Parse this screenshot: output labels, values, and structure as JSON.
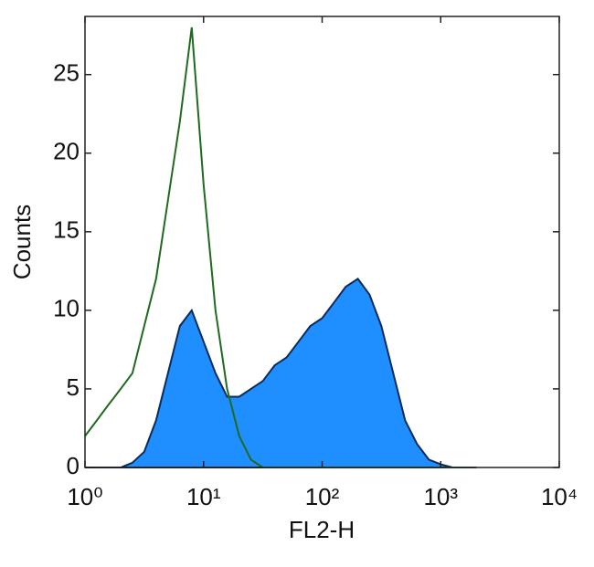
{
  "chart_data": {
    "type": "histogram",
    "x_label": "FL2-H",
    "y_label": "Counts",
    "log_x": true,
    "x": [
      1,
      1.26,
      1.58,
      2,
      2.51,
      3.16,
      3.98,
      5.01,
      6.31,
      7.94,
      10,
      12.6,
      15.8,
      20,
      25.1,
      31.6,
      39.8,
      50.1,
      63.1,
      79.4,
      100,
      126,
      158,
      200,
      251,
      316,
      398,
      501,
      631,
      794,
      1000,
      1259,
      1585,
      2000
    ],
    "series": [
      {
        "color": "#1f8fff",
        "outline": "#0a2a5a",
        "fill": true,
        "values": [
          0,
          0,
          0,
          0,
          0.3,
          1,
          3,
          6,
          9,
          10,
          8,
          6,
          4.5,
          4.5,
          5,
          5.5,
          6.5,
          7,
          8,
          9,
          9.5,
          10.5,
          11.5,
          12,
          11,
          9,
          6,
          3,
          1.5,
          0.5,
          0.2,
          0,
          0,
          0
        ]
      },
      {
        "color": "#1f6a1f",
        "fill": false,
        "values": [
          2,
          3,
          4,
          5,
          6,
          9,
          12,
          17,
          22,
          28,
          18,
          10,
          5,
          2,
          0.5,
          0,
          0,
          0,
          0,
          0,
          0,
          0,
          0,
          0,
          0,
          0,
          0,
          0,
          0,
          0,
          0,
          0,
          0,
          0
        ]
      }
    ],
    "xlim": [
      1,
      10000
    ],
    "xticks": [
      {
        "value": 1,
        "label": "10⁰"
      },
      {
        "value": 10,
        "label": "10¹"
      },
      {
        "value": 100,
        "label": "10²"
      },
      {
        "value": 1000,
        "label": "10³"
      },
      {
        "value": 10000,
        "label": "10⁴"
      }
    ],
    "ylim": [
      0,
      28.7
    ],
    "yticks": [
      0,
      5,
      10,
      15,
      20,
      25
    ]
  }
}
